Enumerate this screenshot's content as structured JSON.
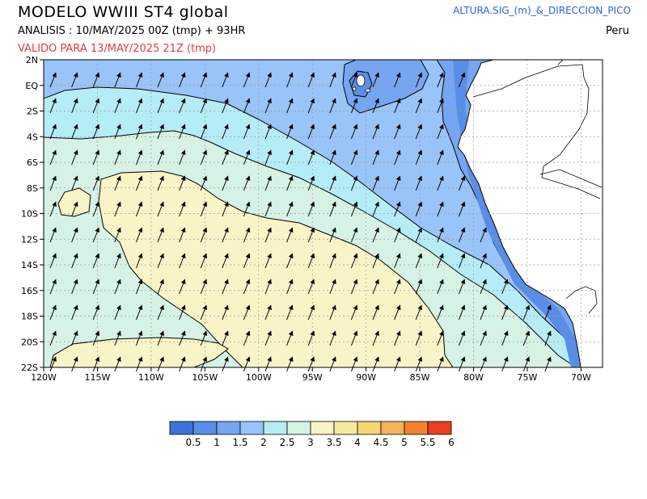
{
  "header": {
    "title": "MODELO WWIII ST4 global",
    "analysis": "ANALISIS : 10/MAY/2025 00Z  (tmp) + 93HR",
    "valid": "VALIDO PARA  13/MAY/2025 21Z  (tmp)",
    "variable": "ALTURA.SIG_(m)_&_DIRECCION_PICO",
    "region": "Peru"
  },
  "map": {
    "lat_labels": [
      "2N",
      "EQ",
      "2S",
      "4S",
      "6S",
      "8S",
      "10S",
      "12S",
      "14S",
      "16S",
      "18S",
      "20S",
      "22S"
    ],
    "lon_labels": [
      "120W",
      "115W",
      "110W",
      "105W",
      "100W",
      "95W",
      "90W",
      "85W",
      "80W",
      "75W",
      "70W"
    ],
    "extent": {
      "lon_min": -120,
      "lon_max": -68,
      "lat_min": -22,
      "lat_max": 2
    },
    "grid": true,
    "arrow_direction": "northeast"
  },
  "colorbar": {
    "labels": [
      "0.5",
      "1",
      "1.5",
      "2",
      "2.5",
      "3",
      "3.5",
      "4",
      "4.5",
      "5",
      "5.5",
      "6"
    ],
    "colors": [
      "#3c74d6",
      "#5a8ee6",
      "#76a6f0",
      "#98c4f8",
      "#b6ecf6",
      "#d6f2e4",
      "#f9f4c8",
      "#f6ea9e",
      "#f4d572",
      "#f3b35c",
      "#f2822f",
      "#e84020"
    ]
  }
}
